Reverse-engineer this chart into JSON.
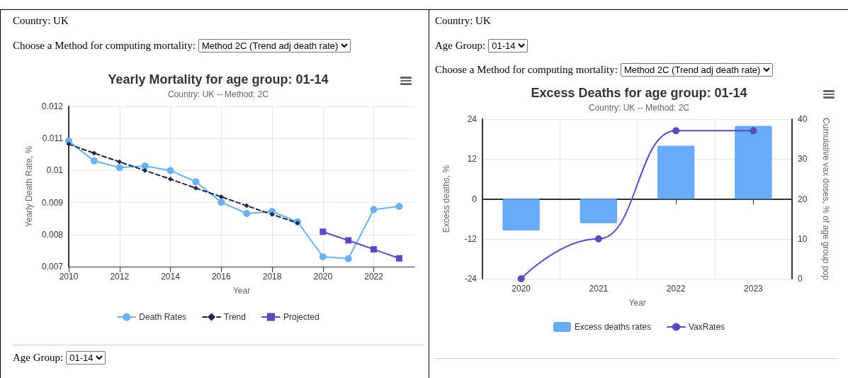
{
  "chart_data": [
    {
      "type": "line",
      "title": "Yearly Mortality for age group: 01-14",
      "subtitle": "Country: UK -- Method: 2C",
      "xlabel": "Year",
      "ylabel": "Yearly Death Rate, %",
      "annotations": [
        "Country: UK",
        "Choose a Method for computing mortality:",
        "Method 2C (Trend adj death rate)",
        "Age Group:",
        "01-14"
      ],
      "series": [
        {
          "name": "Death Rates",
          "color": "#6cb0f0",
          "marker": "circle",
          "line_style": "solid",
          "x": [
            2010,
            2011,
            2012,
            2013,
            2014,
            2015,
            2016,
            2017,
            2018,
            2019,
            2020,
            2021,
            2022,
            2023
          ],
          "values": [
            0.01092,
            0.0103,
            0.01009,
            0.01014,
            0.01,
            0.00965,
            0.00901,
            0.00866,
            0.00872,
            0.0084,
            0.00731,
            0.00725,
            0.00878,
            0.00888
          ]
        },
        {
          "name": "Trend",
          "color": "#1e2a44",
          "marker": "diamond",
          "line_style": "dashed",
          "x": [
            2010,
            2011,
            2012,
            2013,
            2014,
            2015,
            2016,
            2017,
            2018,
            2019
          ],
          "values": [
            0.01082,
            0.01054,
            0.01027,
            0.01,
            0.00973,
            0.00945,
            0.00918,
            0.0089,
            0.00863,
            0.00836
          ]
        },
        {
          "name": "Projected",
          "color": "#5b4bbf",
          "marker": "square",
          "line_style": "solid",
          "x": [
            2020,
            2021,
            2022,
            2023
          ],
          "values": [
            0.00809,
            0.00782,
            0.00754,
            0.00726
          ]
        }
      ],
      "xlim": [
        2010,
        2023.6
      ],
      "xticks": [
        2010,
        2012,
        2014,
        2016,
        2018,
        2020,
        2022
      ],
      "ylim": [
        0.007,
        0.012
      ],
      "yticks": [
        0.007,
        0.008,
        0.009,
        0.01,
        0.011,
        0.012
      ],
      "grid": true,
      "legend": "bottom"
    },
    {
      "type": "bar",
      "title": "Excess Deaths for age group: 01-14",
      "subtitle": "Country: UK -- Method: 2C",
      "xlabel": "Year",
      "ylabel": "Excess deaths, %",
      "y2label": "Cumulative vax doses, % of age group pop",
      "annotations": [
        "Country: UK",
        "Age Group:",
        "01-14",
        "Choose a Method for computing mortality:",
        "Method 2C (Trend adj death rate)"
      ],
      "categories": [
        "2020",
        "2021",
        "2022",
        "2023"
      ],
      "series": [
        {
          "name": "Excess deaths rates",
          "color": "#68aaf5",
          "values": [
            -9.5,
            -7.3,
            16.0,
            22.0
          ]
        },
        {
          "name": "VaxRates",
          "type": "line",
          "axis": "y2",
          "color": "#5a4cc0",
          "marker": "circle",
          "line_style": "solid",
          "values": [
            0,
            10.0,
            37.1,
            37.1
          ]
        }
      ],
      "ylim": [
        -24,
        24
      ],
      "yticks": [
        -24,
        -12,
        0,
        12,
        24
      ],
      "y2lim": [
        0,
        40
      ],
      "y2ticks": [
        0,
        10,
        20,
        30,
        40
      ],
      "grid": true,
      "legend": "bottom"
    }
  ]
}
